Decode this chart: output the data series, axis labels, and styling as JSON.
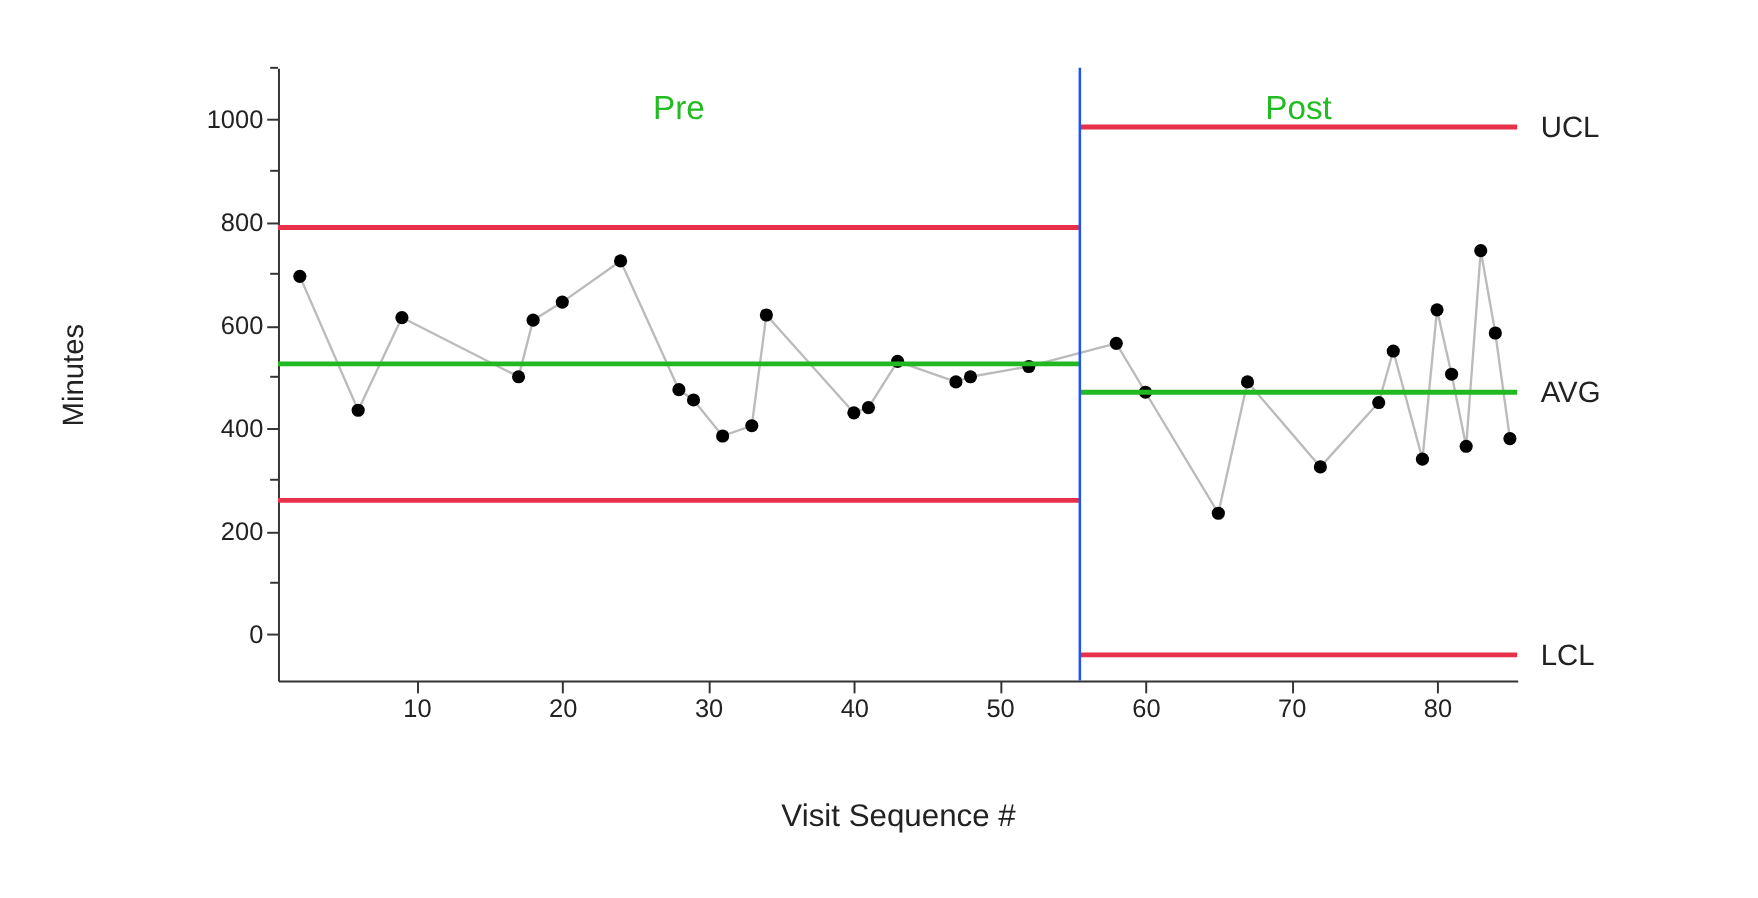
{
  "chart_data": {
    "type": "line",
    "xlabel": "Visit Sequence #",
    "ylabel": "Minutes",
    "xlim": [
      0.5,
      85.5
    ],
    "ylim": [
      -90,
      1100
    ],
    "xticks": [
      10,
      20,
      30,
      40,
      50,
      60,
      70,
      80
    ],
    "yticks": [
      0,
      {
        "value": 100,
        "label": null
      },
      200,
      {
        "value": 300,
        "label": null
      },
      400,
      {
        "value": 500,
        "label": null
      },
      600,
      {
        "value": 700,
        "label": null
      },
      800,
      {
        "value": 900,
        "label": null
      },
      1000,
      {
        "value": 1100,
        "label": null
      }
    ],
    "grid": false,
    "annotations": [
      "Pre",
      "Post"
    ],
    "ref_lines": [
      {
        "axis": "x",
        "value": 55.5,
        "label": null,
        "color": "#2255ee"
      }
    ],
    "series": [
      {
        "marker": "circle",
        "color": "#000000",
        "x": [
          2,
          6,
          9,
          17,
          18,
          20,
          24,
          28,
          29,
          31,
          33,
          34,
          40,
          41,
          43,
          47,
          48,
          52,
          58,
          60,
          65,
          67,
          72,
          76,
          77,
          79,
          80,
          81,
          82,
          83,
          84,
          85
        ],
        "values": [
          695,
          435,
          615,
          500,
          610,
          645,
          725,
          475,
          455,
          385,
          405,
          620,
          430,
          440,
          530,
          490,
          500,
          520,
          565,
          470,
          235,
          490,
          325,
          450,
          550,
          340,
          630,
          505,
          365,
          745,
          585,
          380
        ]
      },
      {
        "name": "UCL",
        "marker": "none",
        "color": "#e8304a",
        "x": [
          0.5,
          55.5,
          55.5,
          85.5
        ],
        "values": [
          790,
          790,
          985,
          985
        ]
      },
      {
        "name": "AVG",
        "marker": "none",
        "color": "#22b822",
        "x": [
          0.5,
          55.5,
          55.5,
          85.5
        ],
        "values": [
          525,
          525,
          470,
          470
        ]
      },
      {
        "name": "LCL",
        "marker": "none",
        "color": "#e8304a",
        "x": [
          0.5,
          55.5,
          55.5,
          85.5
        ],
        "values": [
          260,
          260,
          -40,
          -40
        ]
      }
    ]
  }
}
